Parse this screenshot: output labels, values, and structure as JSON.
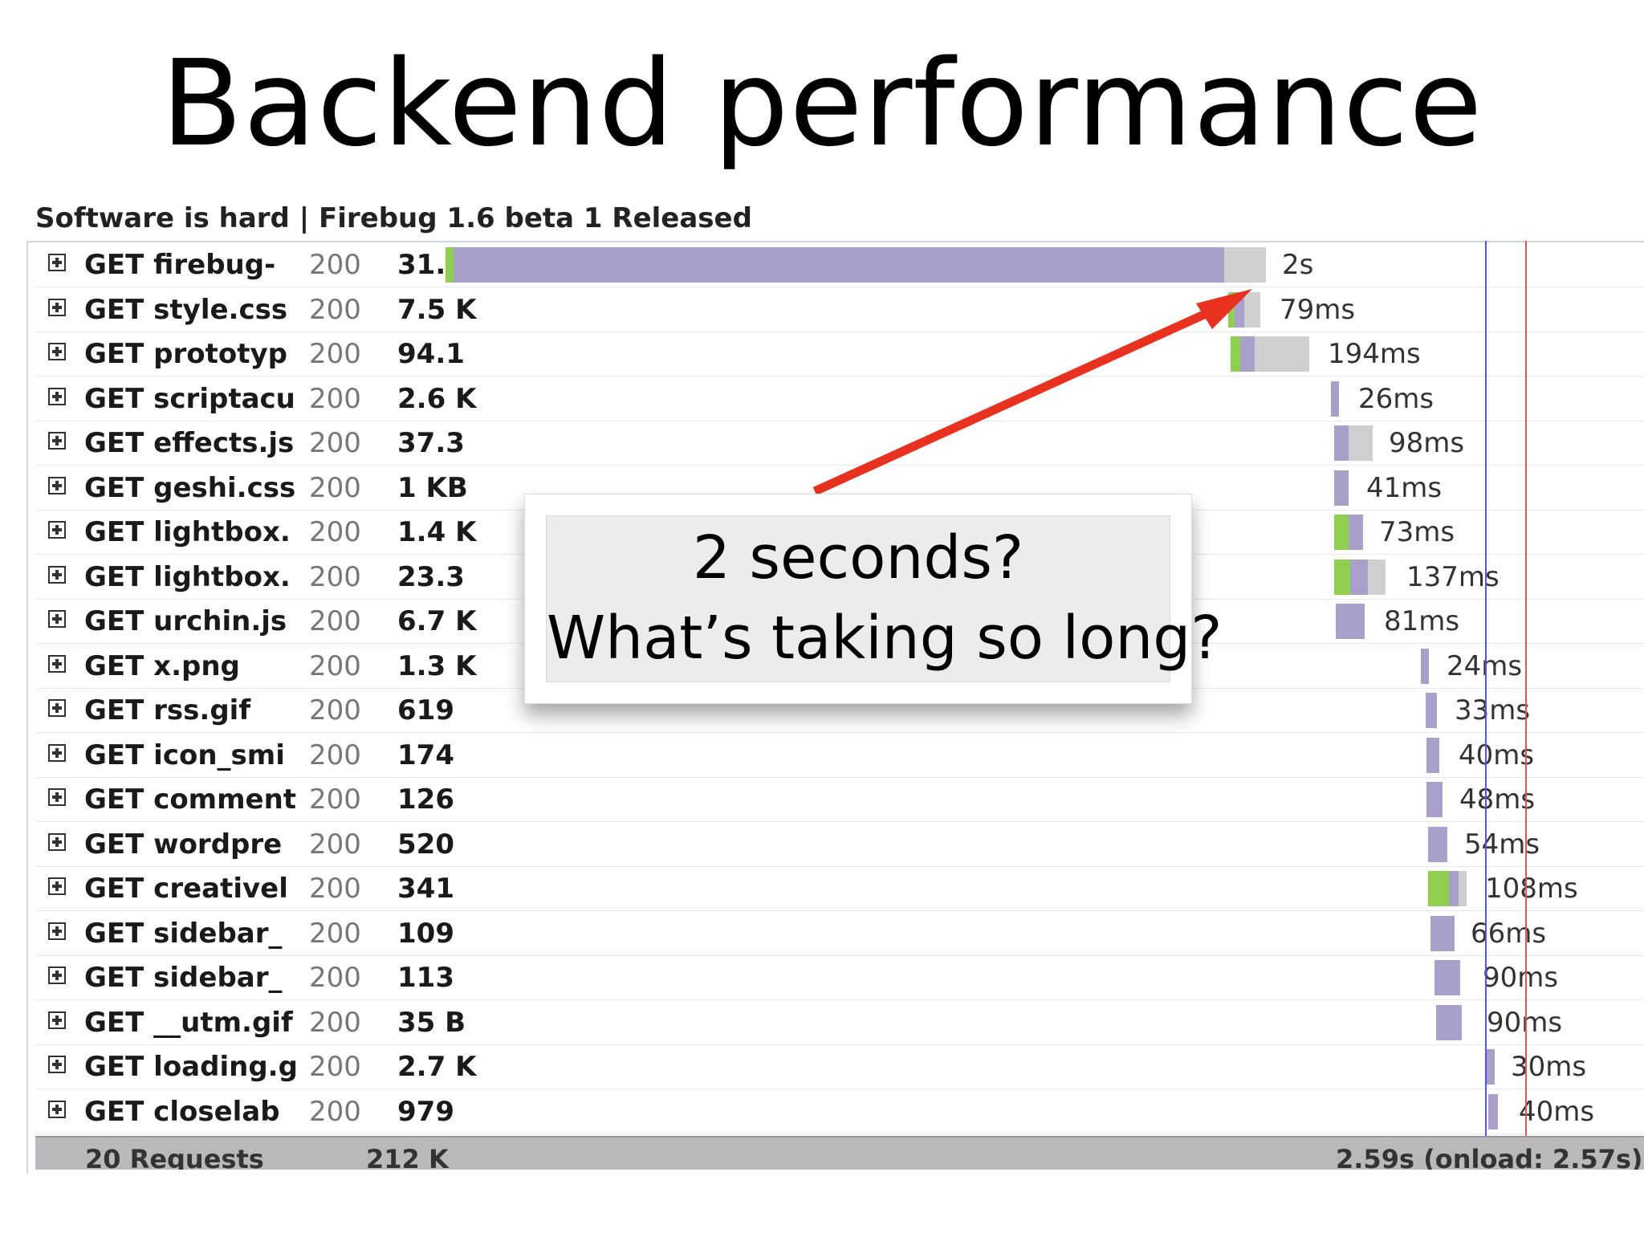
{
  "slide": {
    "title": "Backend performance"
  },
  "window": {
    "title": "Software is hard | Firebug 1.6 beta 1 Released"
  },
  "requests": [
    {
      "label": "GET firebug-",
      "status": "200",
      "size": "31.2",
      "time": "2s"
    },
    {
      "label": "GET style.css",
      "status": "200",
      "size": "7.5 K",
      "time": "79ms"
    },
    {
      "label": "GET prototyp",
      "status": "200",
      "size": "94.1",
      "time": "194ms"
    },
    {
      "label": "GET scriptacu",
      "status": "200",
      "size": "2.6 K",
      "time": "26ms"
    },
    {
      "label": "GET effects.js",
      "status": "200",
      "size": "37.3",
      "time": "98ms"
    },
    {
      "label": "GET geshi.css",
      "status": "200",
      "size": "1 KB",
      "time": "41ms"
    },
    {
      "label": "GET lightbox.",
      "status": "200",
      "size": "1.4 K",
      "time": "73ms"
    },
    {
      "label": "GET lightbox.",
      "status": "200",
      "size": "23.3",
      "time": "137ms"
    },
    {
      "label": "GET urchin.js",
      "status": "200",
      "size": "6.7 K",
      "time": "81ms"
    },
    {
      "label": "GET x.png",
      "status": "200",
      "size": "1.3 K",
      "time": "24ms"
    },
    {
      "label": "GET rss.gif",
      "status": "200",
      "size": "619",
      "time": "33ms"
    },
    {
      "label": "GET icon_smi",
      "status": "200",
      "size": "174",
      "time": "40ms"
    },
    {
      "label": "GET comment",
      "status": "200",
      "size": "126",
      "time": "48ms"
    },
    {
      "label": "GET wordpre",
      "status": "200",
      "size": "520",
      "time": "54ms"
    },
    {
      "label": "GET creativel",
      "status": "200",
      "size": "341",
      "time": "108ms"
    },
    {
      "label": "GET sidebar_",
      "status": "200",
      "size": "109",
      "time": "66ms"
    },
    {
      "label": "GET sidebar_",
      "status": "200",
      "size": "113",
      "time": "90ms"
    },
    {
      "label": "GET __utm.gif",
      "status": "200",
      "size": "35 B",
      "time": "90ms"
    },
    {
      "label": "GET loading.g",
      "status": "200",
      "size": "2.7 K",
      "time": "30ms"
    },
    {
      "label": "GET closelab",
      "status": "200",
      "size": "979",
      "time": "40ms"
    }
  ],
  "footer": {
    "requests": "20 Requests",
    "size": "212 K",
    "total": "2.59s (onload: 2.57s)"
  },
  "callout": {
    "line1": "2 seconds?",
    "line2": "What’s taking so long?"
  },
  "colors": {
    "waiting": "#a99fcb",
    "receiving": "#cfcfd1",
    "connecting": "#8fd14f",
    "dom_line": "#5555ee",
    "load_line": "#e25555",
    "arrow": "#e8321f"
  }
}
